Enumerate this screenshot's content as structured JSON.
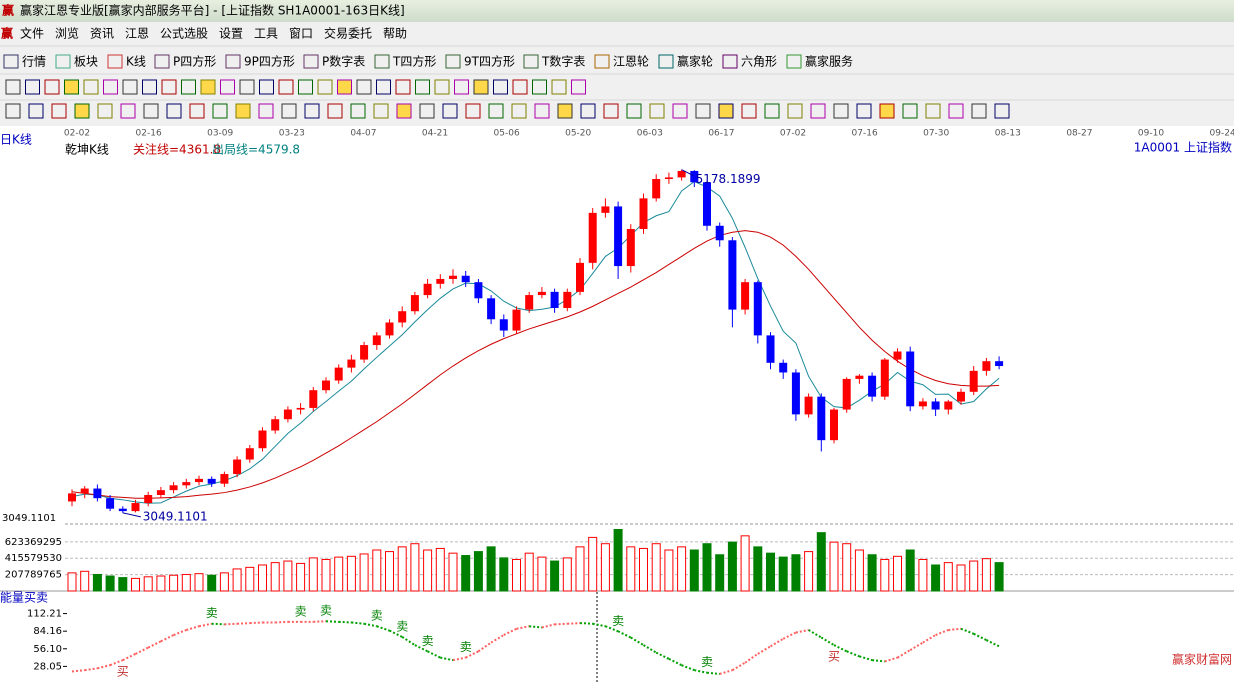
{
  "window": {
    "title": "赢家江恩专业版[赢家内部服务平台] - [上证指数  SH1A0001-163日K线]"
  },
  "menu": [
    "文件",
    "浏览",
    "资讯",
    "江恩",
    "公式选股",
    "设置",
    "工具",
    "窗口",
    "交易委托",
    "帮助"
  ],
  "toolbar": [
    "行情",
    "板块",
    "K线",
    "P四方形",
    "9P四方形",
    "P数字表",
    "T四方形",
    "9T四方形",
    "T数字表",
    "江恩轮",
    "赢家轮",
    "六角形",
    "赢家服务"
  ],
  "watermark": "赢家财富网",
  "chart_data": [
    {
      "type": "candlestick",
      "period": "日K线",
      "title": "乾坤K线",
      "attention": "关注线=4361.8",
      "exit": "出局线=4579.8",
      "symbol": "1A0001  上证指数",
      "xtick_labels": [
        "02-02",
        "02-16",
        "03-09",
        "03-23",
        "04-07",
        "04-21",
        "05-06",
        "05-20",
        "06-03",
        "06-17",
        "07-02",
        "07-16",
        "07-30",
        "08-13",
        "08-27",
        "09-10",
        "09-24"
      ],
      "open": [
        3120,
        3170,
        3200,
        3140,
        3075,
        3060,
        3110,
        3160,
        3190,
        3220,
        3240,
        3260,
        3230,
        3290,
        3380,
        3450,
        3560,
        3630,
        3690,
        3700,
        3810,
        3870,
        3950,
        4000,
        4090,
        4150,
        4230,
        4300,
        4400,
        4470,
        4500,
        4520,
        4480,
        4380,
        4250,
        4180,
        4310,
        4400,
        4420,
        4320,
        4420,
        4600,
        4910,
        4950,
        4580,
        4810,
        5000,
        5120,
        5130,
        5170,
        5100,
        4830,
        4740,
        4310,
        4480,
        4150,
        3980,
        3920,
        3660,
        3770,
        3500,
        3690,
        3880,
        3900,
        3770,
        4000,
        4050,
        3710,
        3740,
        3690,
        3740,
        3800,
        3930,
        3990
      ],
      "high": [
        3195,
        3215,
        3225,
        3160,
        3090,
        3130,
        3180,
        3210,
        3240,
        3260,
        3280,
        3275,
        3305,
        3400,
        3470,
        3580,
        3650,
        3710,
        3730,
        3830,
        3890,
        3970,
        4030,
        4110,
        4170,
        4250,
        4330,
        4420,
        4500,
        4530,
        4560,
        4550,
        4500,
        4400,
        4280,
        4330,
        4420,
        4450,
        4440,
        4440,
        4630,
        4940,
        5000,
        4980,
        4840,
        5030,
        5150,
        5160,
        5178.1899,
        5175,
        5110,
        4850,
        4760,
        4500,
        4490,
        4170,
        4000,
        3940,
        3790,
        3790,
        3700,
        3890,
        3910,
        3920,
        4010,
        4070,
        4080,
        3760,
        3760,
        3750,
        3820,
        3960,
        4010,
        4020
      ],
      "low": [
        3090,
        3140,
        3120,
        3060,
        3049.1101,
        3052,
        3090,
        3140,
        3170,
        3200,
        3220,
        3210,
        3210,
        3270,
        3360,
        3430,
        3540,
        3610,
        3660,
        3680,
        3790,
        3850,
        3920,
        3980,
        4060,
        4130,
        4200,
        4280,
        4380,
        4440,
        4470,
        4450,
        4350,
        4220,
        4140,
        4160,
        4290,
        4380,
        4290,
        4300,
        4400,
        4560,
        4880,
        4500,
        4540,
        4780,
        4980,
        5090,
        5110,
        5070,
        4800,
        4700,
        4200,
        4280,
        4100,
        3940,
        3880,
        3620,
        3640,
        3430,
        3480,
        3670,
        3850,
        3740,
        3750,
        3980,
        3680,
        3690,
        3650,
        3660,
        3720,
        3780,
        3900,
        3940
      ],
      "close": [
        3170,
        3200,
        3140,
        3075,
        3060,
        3110,
        3160,
        3190,
        3220,
        3240,
        3260,
        3230,
        3290,
        3380,
        3450,
        3560,
        3630,
        3690,
        3700,
        3810,
        3870,
        3950,
        4000,
        4090,
        4150,
        4230,
        4300,
        4400,
        4470,
        4500,
        4520,
        4480,
        4380,
        4250,
        4180,
        4310,
        4400,
        4420,
        4320,
        4420,
        4600,
        4910,
        4950,
        4580,
        4810,
        5000,
        5120,
        5130,
        5170,
        5100,
        4830,
        4740,
        4310,
        4480,
        4150,
        3980,
        3920,
        3660,
        3770,
        3500,
        3690,
        3880,
        3900,
        3770,
        4000,
        4050,
        3710,
        3740,
        3690,
        3740,
        3800,
        3930,
        3990,
        3960
      ],
      "up_color": "#ff0000",
      "down_color": "#0000ff",
      "ma": [
        {
          "color": "#1a8a9a",
          "values": [
            3150,
            3165,
            3160,
            3140,
            3130,
            3117,
            3109,
            3111,
            3148,
            3184,
            3214,
            3228,
            3248,
            3280,
            3322,
            3382,
            3462,
            3542,
            3606,
            3678,
            3740,
            3804,
            3866,
            3942,
            4014,
            4084,
            4154,
            4234,
            4310,
            4380,
            4438,
            4474,
            4470,
            4426,
            4362,
            4320,
            4304,
            4312,
            4326,
            4374,
            4432,
            4534,
            4640,
            4692,
            4770,
            4850,
            4892,
            4918,
            5046,
            5104,
            5070,
            5014,
            4876,
            4696,
            4502,
            4332,
            4176,
            4102,
            3896,
            3766,
            3708,
            3700,
            3748,
            3804,
            3848,
            3920,
            3866,
            3844,
            3784,
            3786,
            3724,
            3740,
            3818,
            3884
          ]
        },
        {
          "color": "#cc0000",
          "values": [
            3180,
            3170,
            3160,
            3150,
            3145,
            3140,
            3140,
            3142,
            3145,
            3150,
            3158,
            3165,
            3175,
            3190,
            3210,
            3235,
            3265,
            3300,
            3335,
            3375,
            3420,
            3465,
            3515,
            3565,
            3615,
            3670,
            3725,
            3785,
            3845,
            3905,
            3960,
            4010,
            4055,
            4095,
            4130,
            4160,
            4190,
            4215,
            4240,
            4265,
            4295,
            4330,
            4370,
            4410,
            4450,
            4495,
            4540,
            4590,
            4640,
            4690,
            4735,
            4770,
            4790,
            4800,
            4790,
            4760,
            4710,
            4640,
            4560,
            4470,
            4380,
            4290,
            4200,
            4120,
            4050,
            3990,
            3940,
            3900,
            3870,
            3850,
            3840,
            3835,
            3835,
            3840
          ]
        }
      ],
      "ylim": [
        2980,
        5300
      ]
    },
    {
      "type": "bar",
      "values": [
        230000000,
        250000000,
        210000000,
        190000000,
        170000000,
        160000000,
        180000000,
        190000000,
        200000000,
        210000000,
        220000000,
        200000000,
        230000000,
        280000000,
        300000000,
        330000000,
        360000000,
        380000000,
        350000000,
        420000000,
        400000000,
        430000000,
        440000000,
        470000000,
        520000000,
        500000000,
        560000000,
        600000000,
        520000000,
        540000000,
        480000000,
        450000000,
        500000000,
        560000000,
        420000000,
        400000000,
        480000000,
        430000000,
        380000000,
        420000000,
        560000000,
        680000000,
        600000000,
        780000000,
        560000000,
        540000000,
        600000000,
        520000000,
        560000000,
        520000000,
        600000000,
        460000000,
        620000000,
        700000000,
        560000000,
        480000000,
        430000000,
        460000000,
        500000000,
        740000000,
        620000000,
        600000000,
        520000000,
        460000000,
        400000000,
        440000000,
        520000000,
        400000000,
        330000000,
        360000000,
        330000000,
        380000000,
        410000000,
        360000000
      ],
      "up_color": "#ff0000",
      "down_color": "#008000",
      "ylim": [
        0,
        850000000
      ],
      "yticks": [
        207789765,
        415579530,
        623369295
      ]
    },
    {
      "type": "line",
      "title": "能量买卖",
      "values": [
        20,
        22,
        25,
        30,
        38,
        48,
        58,
        68,
        78,
        86,
        92,
        96,
        95,
        96,
        97,
        98,
        98,
        99,
        99,
        99,
        100,
        99,
        98,
        96,
        92,
        85,
        75,
        62,
        52,
        42,
        38,
        42,
        52,
        66,
        78,
        88,
        92,
        90,
        95,
        96,
        97,
        96,
        92,
        84,
        74,
        62,
        50,
        40,
        30,
        22,
        18,
        16,
        22,
        34,
        48,
        60,
        72,
        82,
        86,
        74,
        62,
        52,
        44,
        38,
        36,
        42,
        54,
        66,
        78,
        86,
        88,
        80,
        70,
        60
      ],
      "up_color": "#ff6060",
      "down_color": "#00a000",
      "signals": [
        {
          "index": 4,
          "label": "买"
        },
        {
          "index": 11,
          "label": "卖"
        },
        {
          "index": 18,
          "label": "卖"
        },
        {
          "index": 20,
          "label": "卖"
        },
        {
          "index": 24,
          "label": "卖"
        },
        {
          "index": 26,
          "label": "卖"
        },
        {
          "index": 28,
          "label": "卖"
        },
        {
          "index": 31,
          "label": "卖"
        },
        {
          "index": 43,
          "label": "卖"
        },
        {
          "index": 50,
          "label": "卖"
        },
        {
          "index": 60,
          "label": "买"
        }
      ],
      "ylim": [
        0,
        137
      ],
      "yticks": [
        28.05,
        {
          "value": 56.1,
          "label": "56.10"
        },
        84.16,
        112.21
      ]
    }
  ]
}
